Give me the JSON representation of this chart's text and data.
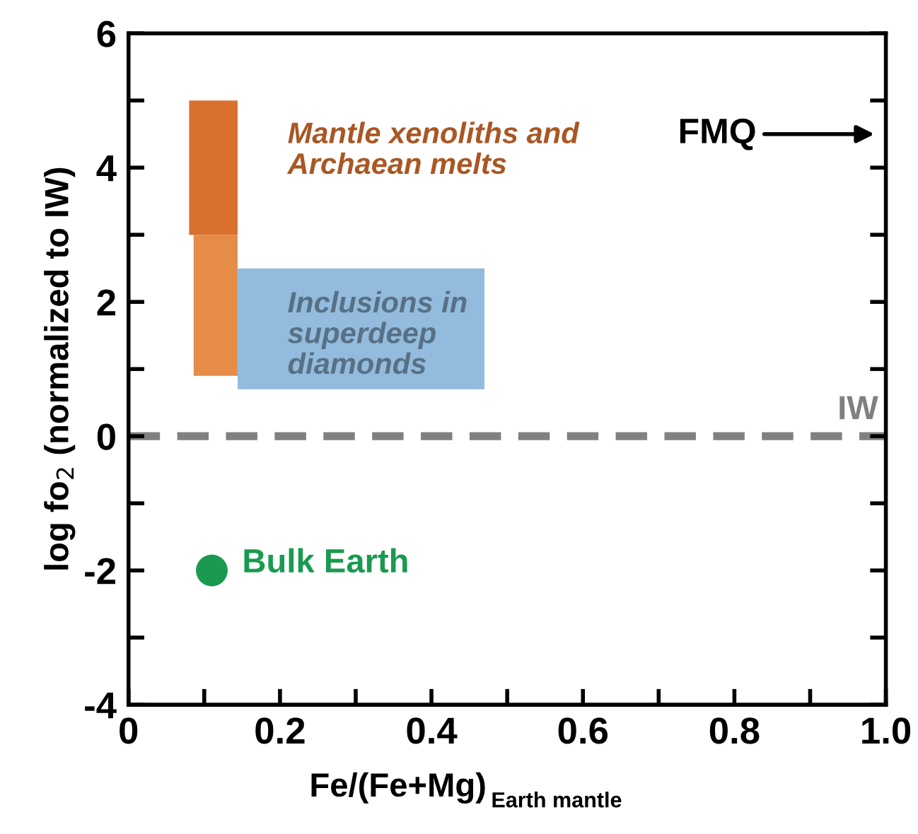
{
  "chart_data": {
    "type": "area",
    "xlabel": "Fe/(Fe+Mg)$_{Earth mantle}$",
    "ylabel": "log fo$_{2}$ (normalized to IW)",
    "xlim": [
      0,
      1.0
    ],
    "ylim": [
      -4,
      6
    ],
    "xticks": [
      0,
      {
        "value": 0.1,
        "label": null
      },
      0.2,
      {
        "value": 0.3,
        "label": null
      },
      0.4,
      {
        "value": 0.5,
        "label": null
      },
      0.6,
      {
        "value": 0.7,
        "label": null
      },
      0.8,
      {
        "value": 0.9,
        "label": null
      },
      {
        "value": 1.0,
        "label": "1.0"
      }
    ],
    "yticks": [
      -4,
      {
        "value": -3,
        "label": null
      },
      -2,
      {
        "value": -1,
        "label": null
      },
      0,
      {
        "value": 1,
        "label": null
      },
      2,
      {
        "value": 3,
        "label": null
      },
      4,
      {
        "value": 5,
        "label": null
      },
      6
    ],
    "series": [
      {
        "color": "#d9702e",
        "x": [
          0.08,
          0.144
        ],
        "lower": [
          3,
          3
        ],
        "upper": [
          5,
          5
        ],
        "values": [
          null,
          null
        ]
      },
      {
        "color": "#e48c48",
        "x": [
          0.086,
          0.144
        ],
        "lower": [
          0.9,
          0.9
        ],
        "upper": [
          3,
          3
        ],
        "values": [
          null,
          null
        ]
      },
      {
        "color": "#93bbdd",
        "x": [
          0.144,
          0.47
        ],
        "lower": [
          0.7,
          0.7
        ],
        "upper": [
          2.5,
          2.5
        ],
        "values": [
          null,
          null
        ]
      },
      {
        "type": "scatter",
        "name": "Bulk Earth",
        "marker": "circle",
        "color": "#1a9a50",
        "x": [
          0.11
        ],
        "values": [
          -2
        ]
      }
    ],
    "ref_lines": [
      {
        "axis": "y",
        "value": 0,
        "label": "IW",
        "color": "#808080",
        "line_style": "dashed"
      }
    ],
    "annotations": [
      "Mantle xenoliths and\nArchaean melts",
      "Inclusions in\nsuperdeep\ndiamonds",
      "FMQ"
    ]
  }
}
